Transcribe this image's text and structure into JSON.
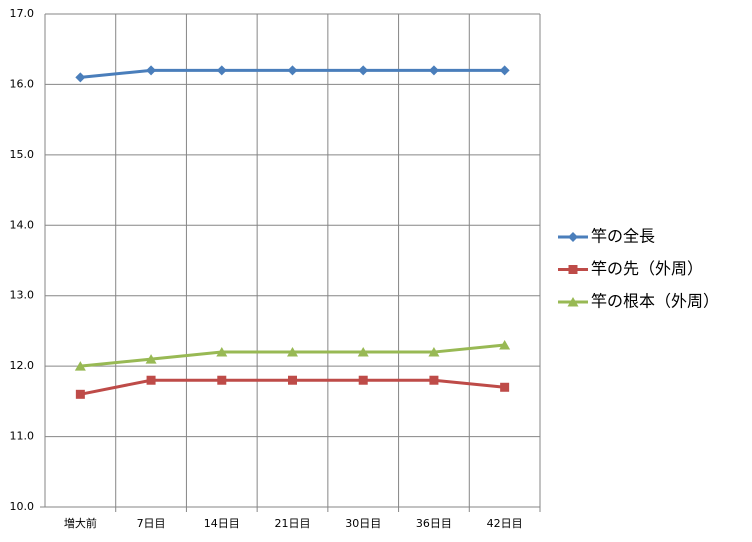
{
  "chart_data": {
    "type": "line",
    "categories": [
      "増大前",
      "7日目",
      "14日目",
      "21日目",
      "30日目",
      "36日目",
      "42日目"
    ],
    "series": [
      {
        "name": "竿の全長",
        "color": "#4a7ebb",
        "marker": "diamond",
        "values": [
          16.1,
          16.2,
          16.2,
          16.2,
          16.2,
          16.2,
          16.2
        ]
      },
      {
        "name": "竿の先（外周）",
        "color": "#be4b48",
        "marker": "square",
        "values": [
          11.6,
          11.8,
          11.8,
          11.8,
          11.8,
          11.8,
          11.7
        ]
      },
      {
        "name": "竿の根本（外周）",
        "color": "#98b954",
        "marker": "triangle",
        "values": [
          12.0,
          12.1,
          12.2,
          12.2,
          12.2,
          12.2,
          12.3
        ]
      }
    ],
    "ylim": [
      10,
      17
    ],
    "yticks": [
      {
        "value": 10,
        "label": "10.0"
      },
      {
        "value": 11,
        "label": "11.0"
      },
      {
        "value": 12,
        "label": "12.0"
      },
      {
        "value": 13,
        "label": "13.0"
      },
      {
        "value": 14,
        "label": "14.0"
      },
      {
        "value": 15,
        "label": "15.0"
      },
      {
        "value": 16,
        "label": "16.0"
      },
      {
        "value": 17,
        "label": "17.0"
      }
    ],
    "grid": true,
    "legend": "right"
  }
}
